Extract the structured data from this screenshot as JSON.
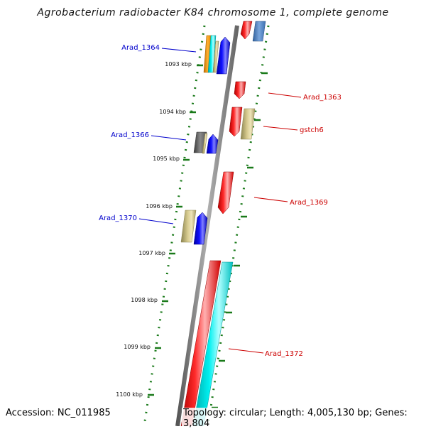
{
  "title": "Agrobacterium radiobacter K84 chromosome 1, complete genome",
  "accession_text": "Accession: NC_011985",
  "topology_text": "Topology: circular; Length: 4,005,130 bp; Genes: 3,804",
  "colors": {
    "backbone": "#808080",
    "tick": "#1a7a1a",
    "label_forward": "#0000cc",
    "label_reverse": "#cc0000",
    "gene_red": "#ff0000",
    "gene_blue": "#0000ff",
    "gene_cyan": "#00e0e0",
    "gene_orange": "#ff9900",
    "gene_khaki": "#c8bc80",
    "gene_grey": "#666666",
    "gene_steelblue": "#4f86c6"
  },
  "scale_labels": [
    "1093 kbp",
    "1094 kbp",
    "1095 kbp",
    "1096 kbp",
    "1097 kbp",
    "1098 kbp",
    "1099 kbp",
    "1100 kbp"
  ],
  "gene_labels": [
    {
      "text": "Arad_1364",
      "strand": "forward"
    },
    {
      "text": "Arad_1363",
      "strand": "reverse"
    },
    {
      "text": "gstch6",
      "strand": "reverse"
    },
    {
      "text": "Arad_1366",
      "strand": "forward"
    },
    {
      "text": "Arad_1369",
      "strand": "reverse"
    },
    {
      "text": "Arad_1370",
      "strand": "forward"
    },
    {
      "text": "Arad_1372",
      "strand": "reverse"
    }
  ]
}
